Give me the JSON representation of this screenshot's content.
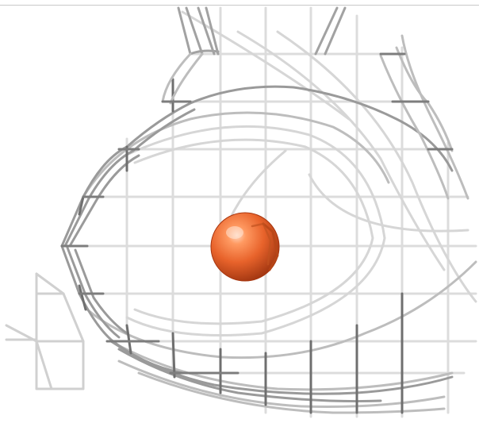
{
  "scene": {
    "background": "#ffffff",
    "mesh_colors": [
      "#e6e6e6",
      "#c8c8c8",
      "#a8a8a8",
      "#8a8a8a",
      "#5a5a5a"
    ],
    "sphere_color": "#e8632b",
    "sphere_highlight": "#ffd2b8",
    "sphere_shadow": "#a8360f"
  }
}
